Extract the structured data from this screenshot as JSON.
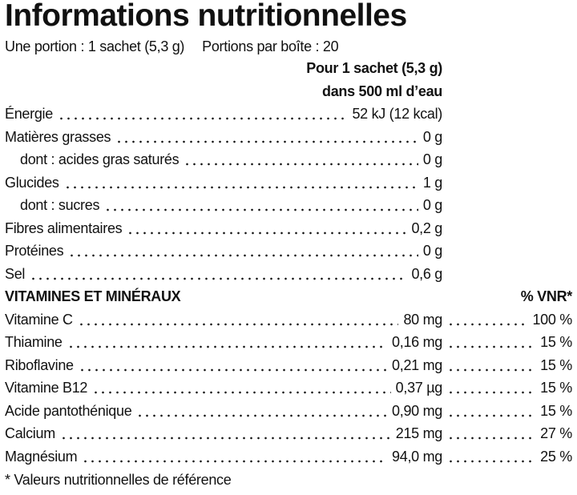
{
  "title": "Informations nutritionnelles",
  "serving": {
    "portion": "Une portion : 1 sachet (5,3 g)",
    "per_box": "Portions par boîte : 20"
  },
  "column_header": [
    "Pour 1 sachet (5,3 g)",
    "dans 500 ml d’eau"
  ],
  "nutrients": [
    {
      "name": "Énergie",
      "value": "52 kJ (12 kcal)"
    },
    {
      "name": "Matières grasses",
      "value": "0 g"
    },
    {
      "name": "dont : acides gras saturés",
      "value": "0 g"
    },
    {
      "name": "Glucides",
      "value": "1 g"
    },
    {
      "name": "dont : sucres",
      "value": "0 g"
    },
    {
      "name": "Fibres alimentaires",
      "value": "0,2 g"
    },
    {
      "name": "Protéines",
      "value": "0 g"
    },
    {
      "name": "Sel",
      "value": "0,6 g"
    }
  ],
  "vitamins_header": {
    "title": "VITAMINES ET MINÉRAUX",
    "vnr": "% VNR*"
  },
  "vitamins": [
    {
      "name": "Vitamine C",
      "amount": "80 mg",
      "vnr": "100 %"
    },
    {
      "name": "Thiamine",
      "amount": "0,16 mg",
      "vnr": "15 %"
    },
    {
      "name": "Riboflavine",
      "amount": "0,21 mg",
      "vnr": "15 %"
    },
    {
      "name": "Vitamine B12",
      "amount": "0,37 µg",
      "vnr": "15 %"
    },
    {
      "name": "Acide pantothénique",
      "amount": "0,90 mg",
      "vnr": "15 %"
    },
    {
      "name": "Calcium",
      "amount": "215 mg",
      "vnr": "27 %"
    },
    {
      "name": "Magnésium",
      "amount": "94,0 mg",
      "vnr": "25 %"
    }
  ],
  "footnote": "* Valeurs nutritionnelles de référence"
}
